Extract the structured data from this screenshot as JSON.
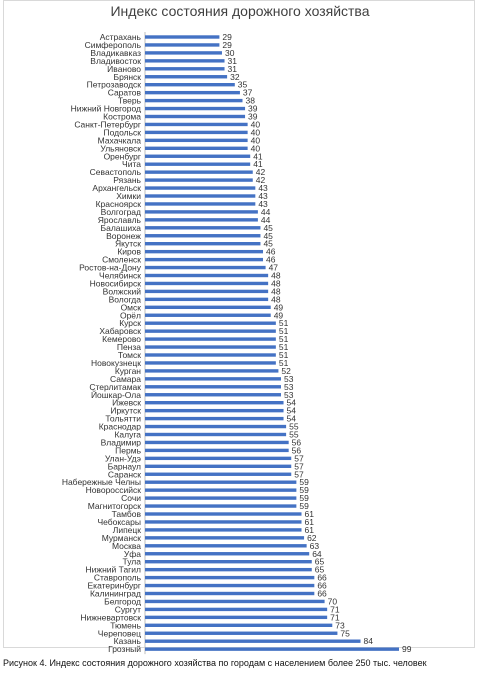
{
  "chart_data": {
    "type": "bar",
    "orientation": "horizontal",
    "title": "Индекс состояния дорожного хозяйства",
    "bar_color": "#4472c4",
    "categories": [
      "Астрахань",
      "Симферополь",
      "Владикавказ",
      "Владивосток",
      "Иваново",
      "Брянск",
      "Петрозаводск",
      "Саратов",
      "Тверь",
      "Нижний Новгород",
      "Кострома",
      "Санкт-Петербург",
      "Подольск",
      "Махачкала",
      "Ульяновск",
      "Оренбург",
      "Чита",
      "Севастополь",
      "Рязань",
      "Архангельск",
      "Химки",
      "Красноярск",
      "Волгоград",
      "Ярославль",
      "Балашиха",
      "Воронеж",
      "Якутск",
      "Киров",
      "Смоленск",
      "Ростов-на-Дону",
      "Челябинск",
      "Новосибирск",
      "Волжский",
      "Вологда",
      "Омск",
      "Орёл",
      "Курск",
      "Хабаровск",
      "Кемерово",
      "Пенза",
      "Томск",
      "Новокузнецк",
      "Курган",
      "Самара",
      "Стерлитамак",
      "Йошкар-Ола",
      "Ижевск",
      "Иркутск",
      "Тольятти",
      "Краснодар",
      "Калуга",
      "Владимир",
      "Пермь",
      "Улан-Удэ",
      "Барнаул",
      "Саранск",
      "Набережные Челны",
      "Новороссийск",
      "Сочи",
      "Магнитогорск",
      "Тамбов",
      "Чебоксары",
      "Липецк",
      "Мурманск",
      "Москва",
      "Уфа",
      "Тула",
      "Нижний Тагил",
      "Ставрополь",
      "Екатеринбург",
      "Калининград",
      "Белгород",
      "Сургут",
      "Нижневартовск",
      "Тюмень",
      "Череповец",
      "Казань",
      "Грозный"
    ],
    "values": [
      29,
      29,
      30,
      31,
      31,
      32,
      35,
      37,
      38,
      39,
      39,
      40,
      40,
      40,
      40,
      41,
      41,
      42,
      42,
      43,
      43,
      43,
      44,
      44,
      45,
      45,
      45,
      46,
      46,
      47,
      48,
      48,
      48,
      48,
      49,
      49,
      51,
      51,
      51,
      51,
      51,
      51,
      52,
      53,
      53,
      53,
      54,
      54,
      54,
      55,
      55,
      56,
      56,
      57,
      57,
      57,
      59,
      59,
      59,
      59,
      61,
      61,
      61,
      62,
      63,
      64,
      65,
      65,
      66,
      66,
      66,
      70,
      71,
      71,
      73,
      75,
      84,
      99
    ],
    "xlim": [
      0,
      99
    ]
  },
  "caption": "Рисунок 4. Индекс состояния дорожного хозяйства по городам с населением более 250 тыс. человек"
}
